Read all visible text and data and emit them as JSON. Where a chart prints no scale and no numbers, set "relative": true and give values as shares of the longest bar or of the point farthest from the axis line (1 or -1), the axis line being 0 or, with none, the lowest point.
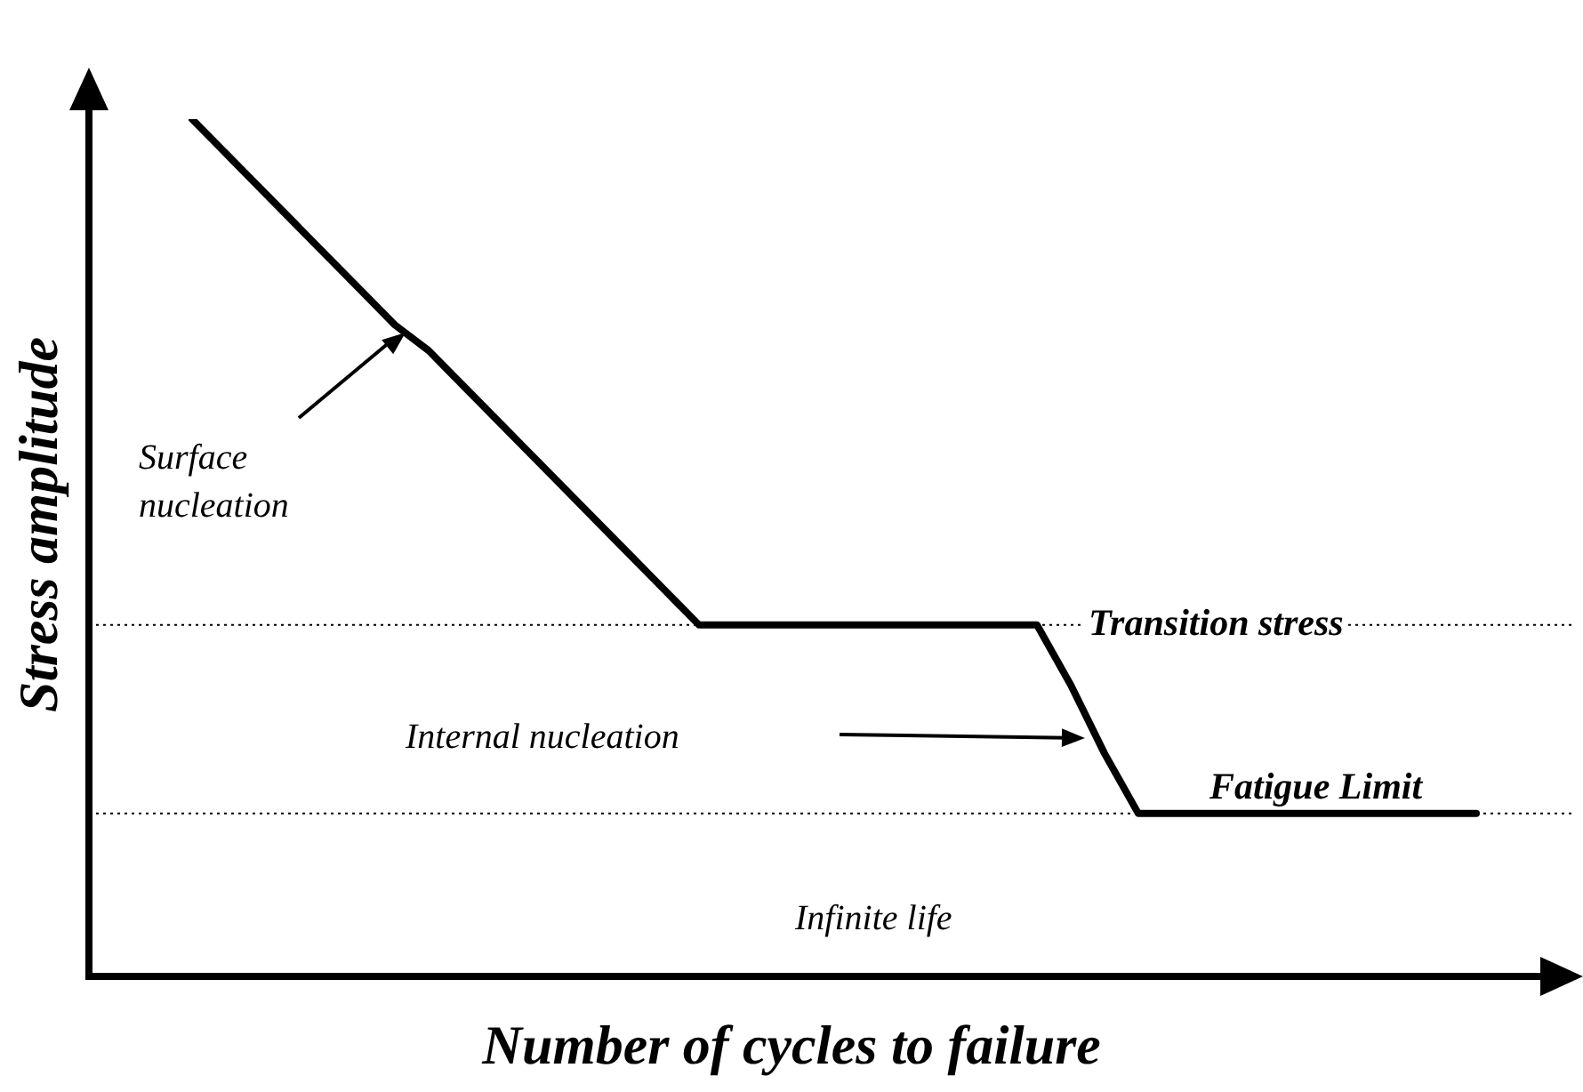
{
  "chart_data": {
    "type": "line",
    "relative": true,
    "xlabel": "Number of cycles to failure",
    "ylabel": "Stress amplitude",
    "categories": [
      null,
      null,
      null,
      null,
      null,
      null,
      null,
      null,
      null,
      null,
      null,
      null,
      null,
      null,
      null,
      null,
      null,
      null,
      null,
      null,
      null,
      null,
      null,
      null,
      null,
      null,
      null,
      null,
      null,
      null,
      null,
      null,
      null,
      null,
      null,
      null,
      null,
      null,
      null
    ],
    "values": [
      1,
      0.96,
      0.92,
      0.88,
      0.84,
      0.8,
      0.76,
      0.73,
      0.69,
      0.65,
      0.61,
      0.57,
      0.53,
      0.49,
      0.45,
      0.41,
      0.41,
      0.41,
      0.41,
      0.41,
      0.41,
      0.41,
      0.41,
      0.41,
      0.41,
      0.41,
      0.34,
      0.26,
      0.19,
      0.19,
      0.19,
      0.19,
      0.19,
      0.19,
      0.19,
      0.19,
      0.19,
      0.19,
      0.19
    ],
    "color": "#000000",
    "marker": "none",
    "line_style": "solid",
    "ref_lines": [
      {
        "axis": "y",
        "value": 0.41,
        "label": "Transition stress",
        "line_style": "dotted"
      },
      {
        "axis": "y",
        "value": 0.19,
        "label": "Fatigue Limit",
        "line_style": "dotted"
      }
    ],
    "annotations": [
      "Surface nucleation",
      "Internal nucleation",
      "Infinite life"
    ]
  }
}
